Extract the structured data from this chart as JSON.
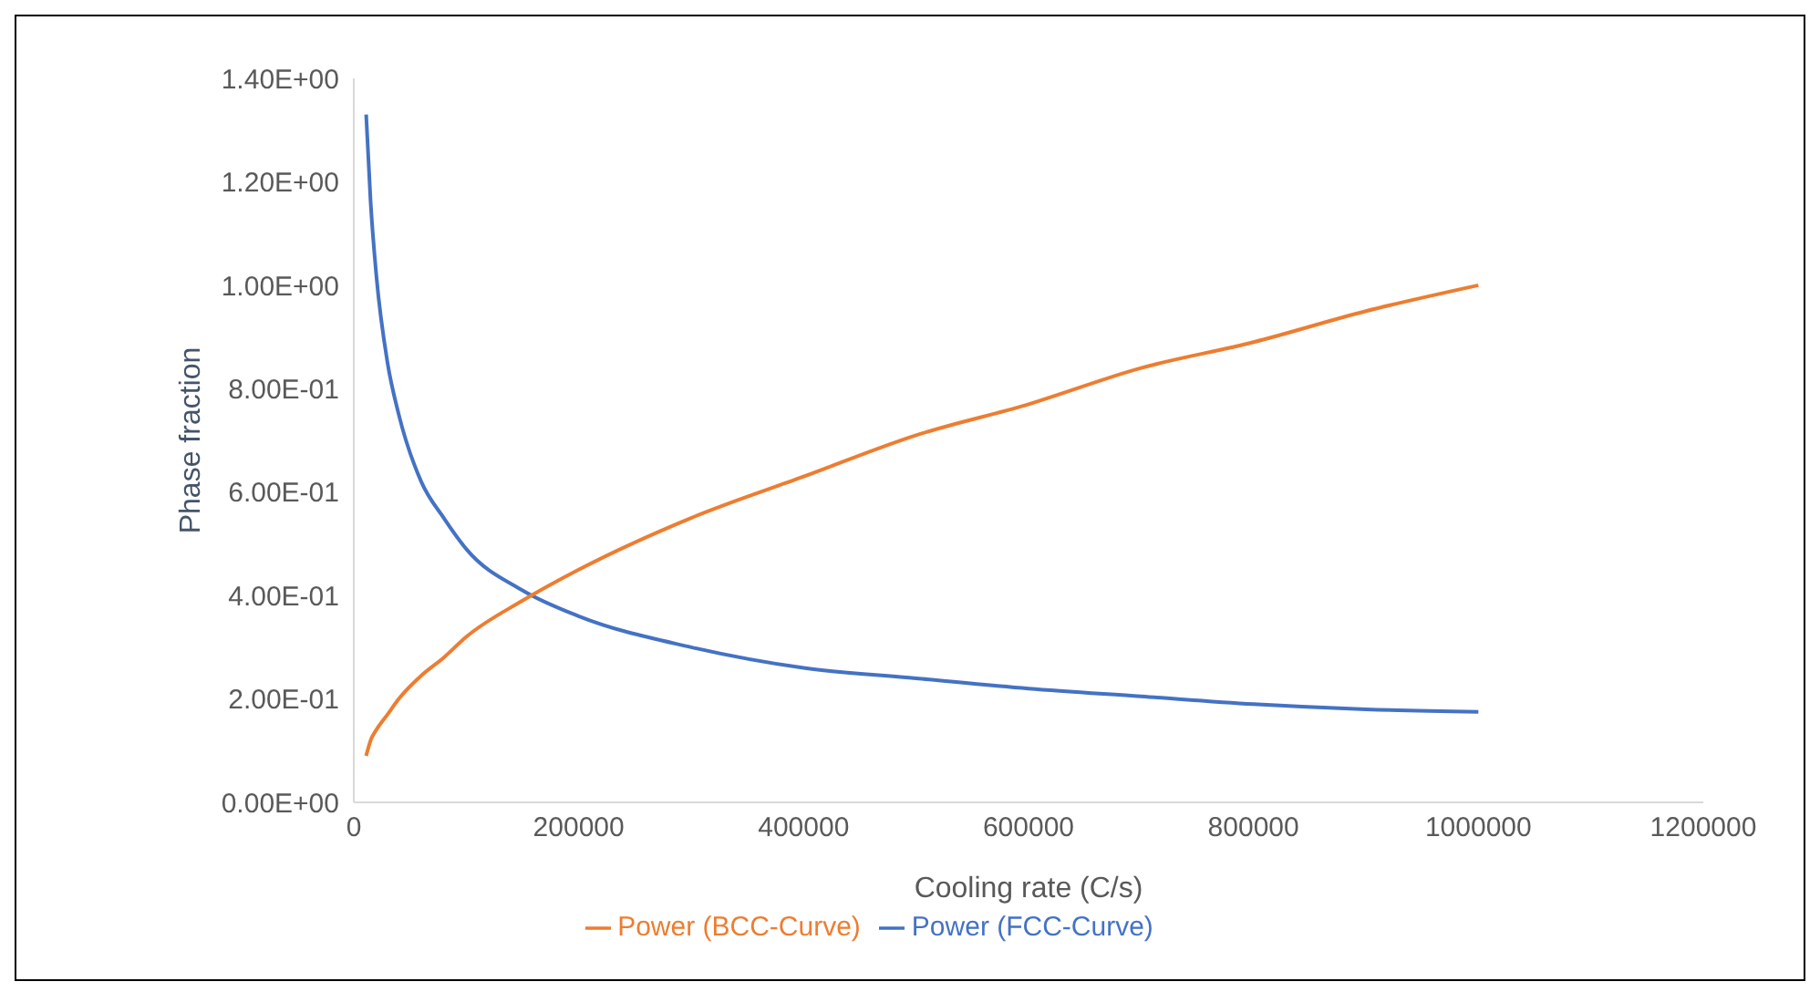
{
  "chart_data": {
    "type": "line",
    "xlabel": "Cooling rate (C/s)",
    "ylabel": "Phase fraction",
    "x": [
      11000,
      15000,
      20000,
      30000,
      40000,
      60000,
      80000,
      100000,
      150000,
      200000,
      300000,
      400000,
      500000,
      600000,
      700000,
      800000,
      900000,
      1000000
    ],
    "series": [
      {
        "name": "Power (FCC-Curve)",
        "color": "#4472c4",
        "values": [
          1.33,
          1.16,
          1.02,
          0.85,
          0.75,
          0.62,
          0.55,
          0.49,
          0.41,
          0.36,
          0.3,
          0.26,
          0.24,
          0.22,
          0.205,
          0.19,
          0.18,
          0.175
        ]
      },
      {
        "name": "Power (BCC-Curve)",
        "color": "#ed7d31",
        "values": [
          0.09,
          0.12,
          0.14,
          0.17,
          0.2,
          0.245,
          0.28,
          0.32,
          0.39,
          0.45,
          0.55,
          0.63,
          0.71,
          0.77,
          0.84,
          0.89,
          0.95,
          1.0
        ]
      }
    ],
    "xlim": [
      0,
      1200000
    ],
    "xticks": [
      0,
      200000,
      400000,
      600000,
      800000,
      1000000,
      1200000
    ],
    "ylim": [
      0,
      1.4
    ],
    "yticks": [
      {
        "value": 0,
        "label": "0.00E+00"
      },
      {
        "value": 0.2,
        "label": "2.00E-01"
      },
      {
        "value": 0.4,
        "label": "4.00E-01"
      },
      {
        "value": 0.6,
        "label": "6.00E-01"
      },
      {
        "value": 0.8,
        "label": "8.00E-01"
      },
      {
        "value": 1.0,
        "label": "1.00E+00"
      },
      {
        "value": 1.2,
        "label": "1.20E+00"
      },
      {
        "value": 1.4,
        "label": "1.40E+00"
      }
    ],
    "grid": false,
    "legend": "bottom",
    "marker": "none",
    "line_style": "solid"
  }
}
